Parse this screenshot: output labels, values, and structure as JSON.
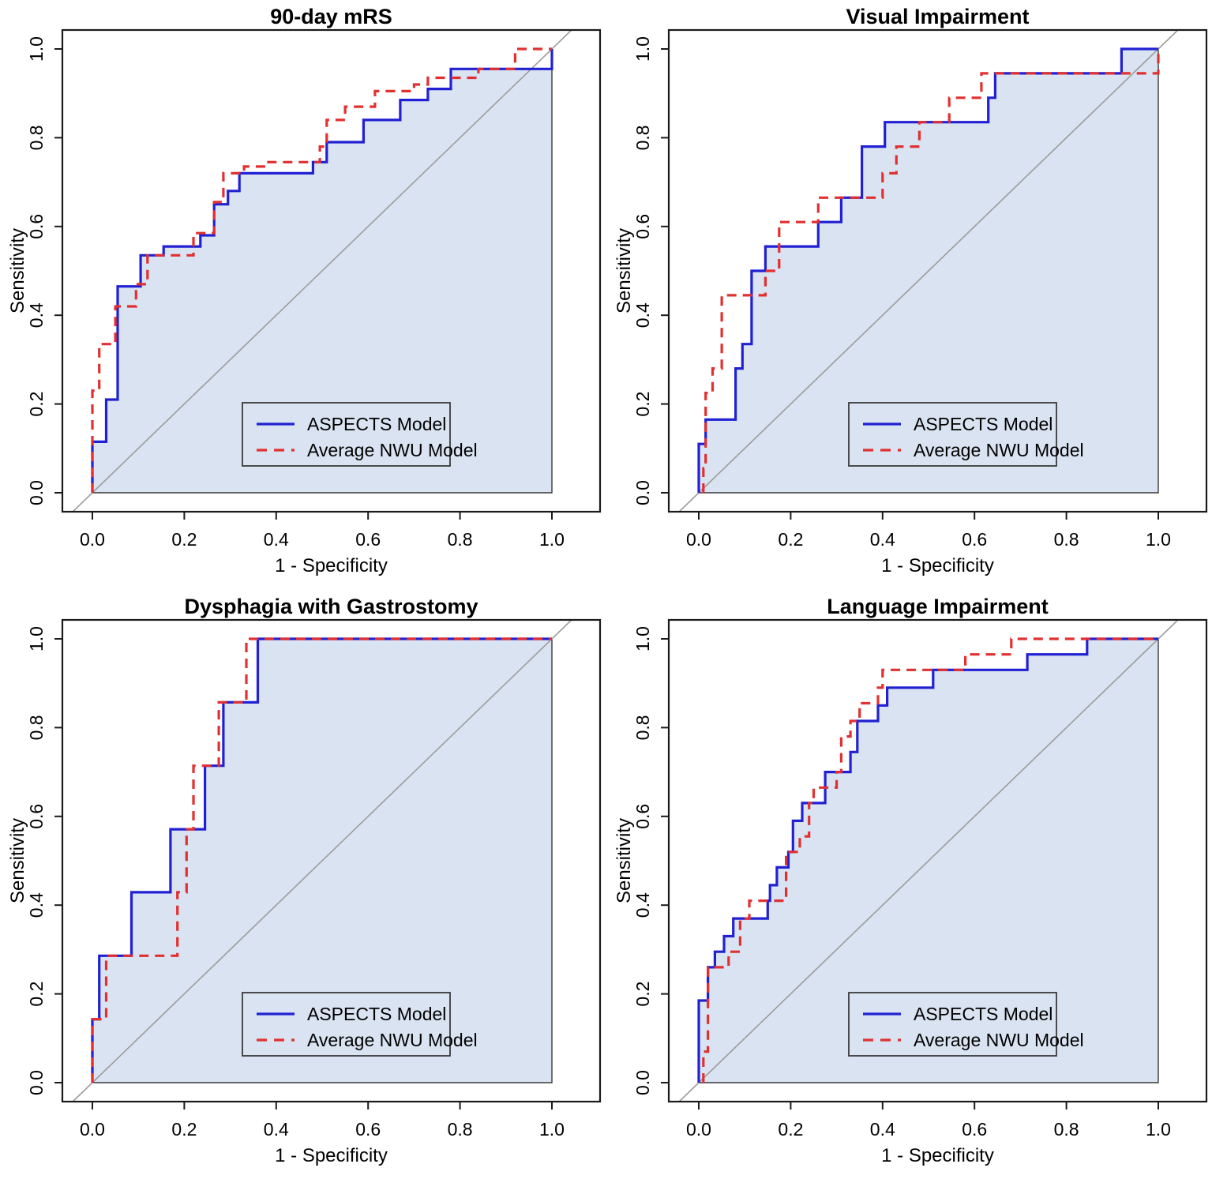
{
  "figure": {
    "type": "roc-curve-grid",
    "layout": {
      "rows": 2,
      "cols": 2
    },
    "colors": {
      "aspects_line": "#2121d3",
      "nwu_line": "#e23030",
      "area_fill": "#d9e3f1",
      "area_border": "#3a3a3a",
      "diagonal": "#9c9c9c",
      "plot_border": "#1a1a1a",
      "text": "#000000",
      "legend_bg": "#d9e3f1",
      "legend_border": "#3a3a3a"
    },
    "legend": {
      "entries": [
        {
          "label": "ASPECTS Model",
          "style": "solid",
          "color": "#2121d3"
        },
        {
          "label": "Average NWU Model",
          "style": "dashed",
          "color": "#e23030"
        }
      ],
      "position": "bottom-right"
    },
    "axis": {
      "xlabel": "1 - Specificity",
      "ylabel": "Sensitivity",
      "xticks": [
        0.0,
        0.2,
        0.4,
        0.6,
        0.8,
        1.0
      ],
      "yticks": [
        0.0,
        0.2,
        0.4,
        0.6,
        0.8,
        1.0
      ]
    }
  },
  "chart_data": [
    {
      "type": "line",
      "subtype": "roc-step",
      "title": "90-day mRS",
      "xlabel": "1 - Specificity",
      "ylabel": "Sensitivity",
      "xlim": [
        0,
        1
      ],
      "ylim": [
        0,
        1
      ],
      "grid": false,
      "diagonal_reference": true,
      "legend_position": "bottom-right",
      "series": [
        {
          "name": "ASPECTS Model",
          "style": "solid",
          "fill_under": true,
          "points": [
            [
              0,
              0
            ],
            [
              0,
              0.115
            ],
            [
              0.03,
              0.115
            ],
            [
              0.03,
              0.21
            ],
            [
              0.055,
              0.21
            ],
            [
              0.055,
              0.465
            ],
            [
              0.105,
              0.465
            ],
            [
              0.105,
              0.535
            ],
            [
              0.155,
              0.535
            ],
            [
              0.155,
              0.555
            ],
            [
              0.235,
              0.555
            ],
            [
              0.235,
              0.58
            ],
            [
              0.265,
              0.58
            ],
            [
              0.265,
              0.65
            ],
            [
              0.295,
              0.65
            ],
            [
              0.295,
              0.68
            ],
            [
              0.32,
              0.68
            ],
            [
              0.32,
              0.72
            ],
            [
              0.48,
              0.72
            ],
            [
              0.48,
              0.745
            ],
            [
              0.51,
              0.745
            ],
            [
              0.51,
              0.79
            ],
            [
              0.59,
              0.79
            ],
            [
              0.59,
              0.84
            ],
            [
              0.67,
              0.84
            ],
            [
              0.67,
              0.885
            ],
            [
              0.73,
              0.885
            ],
            [
              0.73,
              0.91
            ],
            [
              0.78,
              0.91
            ],
            [
              0.78,
              0.955
            ],
            [
              1,
              0.955
            ],
            [
              1,
              1
            ]
          ]
        },
        {
          "name": "Average NWU Model",
          "style": "dashed",
          "fill_under": false,
          "points": [
            [
              0,
              0
            ],
            [
              0,
              0.23
            ],
            [
              0.015,
              0.23
            ],
            [
              0.015,
              0.335
            ],
            [
              0.05,
              0.335
            ],
            [
              0.05,
              0.42
            ],
            [
              0.095,
              0.42
            ],
            [
              0.095,
              0.47
            ],
            [
              0.12,
              0.47
            ],
            [
              0.12,
              0.535
            ],
            [
              0.22,
              0.535
            ],
            [
              0.22,
              0.585
            ],
            [
              0.265,
              0.585
            ],
            [
              0.265,
              0.655
            ],
            [
              0.285,
              0.655
            ],
            [
              0.285,
              0.72
            ],
            [
              0.33,
              0.72
            ],
            [
              0.33,
              0.735
            ],
            [
              0.38,
              0.735
            ],
            [
              0.38,
              0.745
            ],
            [
              0.495,
              0.745
            ],
            [
              0.495,
              0.78
            ],
            [
              0.51,
              0.78
            ],
            [
              0.51,
              0.84
            ],
            [
              0.55,
              0.84
            ],
            [
              0.55,
              0.87
            ],
            [
              0.615,
              0.87
            ],
            [
              0.615,
              0.905
            ],
            [
              0.7,
              0.905
            ],
            [
              0.7,
              0.92
            ],
            [
              0.73,
              0.92
            ],
            [
              0.73,
              0.935
            ],
            [
              0.84,
              0.935
            ],
            [
              0.84,
              0.955
            ],
            [
              0.92,
              0.955
            ],
            [
              0.92,
              1
            ],
            [
              1,
              1
            ]
          ]
        }
      ]
    },
    {
      "type": "line",
      "subtype": "roc-step",
      "title": "Visual Impairment",
      "xlabel": "1 - Specificity",
      "ylabel": "Sensitivity",
      "xlim": [
        0,
        1
      ],
      "ylim": [
        0,
        1
      ],
      "grid": false,
      "diagonal_reference": true,
      "legend_position": "bottom-right",
      "series": [
        {
          "name": "ASPECTS Model",
          "style": "solid",
          "fill_under": true,
          "points": [
            [
              0,
              0
            ],
            [
              0,
              0.11
            ],
            [
              0.015,
              0.11
            ],
            [
              0.015,
              0.165
            ],
            [
              0.08,
              0.165
            ],
            [
              0.08,
              0.28
            ],
            [
              0.095,
              0.28
            ],
            [
              0.095,
              0.335
            ],
            [
              0.115,
              0.335
            ],
            [
              0.115,
              0.5
            ],
            [
              0.145,
              0.5
            ],
            [
              0.145,
              0.555
            ],
            [
              0.26,
              0.555
            ],
            [
              0.26,
              0.61
            ],
            [
              0.31,
              0.61
            ],
            [
              0.31,
              0.665
            ],
            [
              0.355,
              0.665
            ],
            [
              0.355,
              0.78
            ],
            [
              0.405,
              0.78
            ],
            [
              0.405,
              0.835
            ],
            [
              0.63,
              0.835
            ],
            [
              0.63,
              0.89
            ],
            [
              0.645,
              0.89
            ],
            [
              0.645,
              0.945
            ],
            [
              0.92,
              0.945
            ],
            [
              0.92,
              1
            ],
            [
              1,
              1
            ]
          ]
        },
        {
          "name": "Average NWU Model",
          "style": "dashed",
          "fill_under": false,
          "points": [
            [
              0.01,
              0
            ],
            [
              0.01,
              0.055
            ],
            [
              0.015,
              0.055
            ],
            [
              0.015,
              0.225
            ],
            [
              0.03,
              0.225
            ],
            [
              0.03,
              0.28
            ],
            [
              0.05,
              0.28
            ],
            [
              0.05,
              0.445
            ],
            [
              0.145,
              0.445
            ],
            [
              0.145,
              0.5
            ],
            [
              0.175,
              0.5
            ],
            [
              0.175,
              0.61
            ],
            [
              0.26,
              0.61
            ],
            [
              0.26,
              0.665
            ],
            [
              0.4,
              0.665
            ],
            [
              0.4,
              0.72
            ],
            [
              0.43,
              0.72
            ],
            [
              0.43,
              0.78
            ],
            [
              0.48,
              0.78
            ],
            [
              0.48,
              0.835
            ],
            [
              0.545,
              0.835
            ],
            [
              0.545,
              0.89
            ],
            [
              0.615,
              0.89
            ],
            [
              0.615,
              0.945
            ],
            [
              1,
              0.945
            ],
            [
              1,
              1
            ]
          ]
        }
      ]
    },
    {
      "type": "line",
      "subtype": "roc-step",
      "title": "Dysphagia with Gastrostomy",
      "xlabel": "1 - Specificity",
      "ylabel": "Sensitivity",
      "xlim": [
        0,
        1
      ],
      "ylim": [
        0,
        1
      ],
      "grid": false,
      "diagonal_reference": true,
      "legend_position": "bottom-right",
      "series": [
        {
          "name": "ASPECTS Model",
          "style": "solid",
          "fill_under": true,
          "points": [
            [
              0,
              0
            ],
            [
              0,
              0.143
            ],
            [
              0.015,
              0.143
            ],
            [
              0.015,
              0.286
            ],
            [
              0.085,
              0.286
            ],
            [
              0.085,
              0.429
            ],
            [
              0.17,
              0.429
            ],
            [
              0.17,
              0.571
            ],
            [
              0.245,
              0.571
            ],
            [
              0.245,
              0.714
            ],
            [
              0.285,
              0.714
            ],
            [
              0.285,
              0.857
            ],
            [
              0.36,
              0.857
            ],
            [
              0.36,
              1
            ],
            [
              1,
              1
            ]
          ]
        },
        {
          "name": "Average NWU Model",
          "style": "dashed",
          "fill_under": false,
          "points": [
            [
              0,
              0
            ],
            [
              0,
              0.143
            ],
            [
              0.03,
              0.143
            ],
            [
              0.03,
              0.286
            ],
            [
              0.185,
              0.286
            ],
            [
              0.185,
              0.429
            ],
            [
              0.205,
              0.429
            ],
            [
              0.205,
              0.571
            ],
            [
              0.22,
              0.571
            ],
            [
              0.22,
              0.714
            ],
            [
              0.275,
              0.714
            ],
            [
              0.275,
              0.857
            ],
            [
              0.335,
              0.857
            ],
            [
              0.335,
              1
            ],
            [
              1,
              1
            ]
          ]
        }
      ]
    },
    {
      "type": "line",
      "subtype": "roc-step",
      "title": "Language Impairment",
      "xlabel": "1 - Specificity",
      "ylabel": "Sensitivity",
      "xlim": [
        0,
        1
      ],
      "ylim": [
        0,
        1
      ],
      "grid": false,
      "diagonal_reference": true,
      "legend_position": "bottom-right",
      "series": [
        {
          "name": "ASPECTS Model",
          "style": "solid",
          "fill_under": true,
          "points": [
            [
              0,
              0
            ],
            [
              0,
              0.185
            ],
            [
              0.02,
              0.185
            ],
            [
              0.02,
              0.26
            ],
            [
              0.035,
              0.26
            ],
            [
              0.035,
              0.295
            ],
            [
              0.055,
              0.295
            ],
            [
              0.055,
              0.33
            ],
            [
              0.075,
              0.33
            ],
            [
              0.075,
              0.37
            ],
            [
              0.15,
              0.37
            ],
            [
              0.15,
              0.41
            ],
            [
              0.155,
              0.41
            ],
            [
              0.155,
              0.445
            ],
            [
              0.17,
              0.445
            ],
            [
              0.17,
              0.485
            ],
            [
              0.195,
              0.485
            ],
            [
              0.195,
              0.52
            ],
            [
              0.205,
              0.52
            ],
            [
              0.205,
              0.59
            ],
            [
              0.225,
              0.59
            ],
            [
              0.225,
              0.63
            ],
            [
              0.275,
              0.63
            ],
            [
              0.275,
              0.7
            ],
            [
              0.33,
              0.7
            ],
            [
              0.33,
              0.745
            ],
            [
              0.345,
              0.745
            ],
            [
              0.345,
              0.815
            ],
            [
              0.39,
              0.815
            ],
            [
              0.39,
              0.85
            ],
            [
              0.41,
              0.85
            ],
            [
              0.41,
              0.89
            ],
            [
              0.51,
              0.89
            ],
            [
              0.51,
              0.93
            ],
            [
              0.715,
              0.93
            ],
            [
              0.715,
              0.965
            ],
            [
              0.845,
              0.965
            ],
            [
              0.845,
              1
            ],
            [
              1,
              1
            ]
          ]
        },
        {
          "name": "Average NWU Model",
          "style": "dashed",
          "fill_under": false,
          "points": [
            [
              0.01,
              0
            ],
            [
              0.01,
              0.07
            ],
            [
              0.02,
              0.07
            ],
            [
              0.02,
              0.26
            ],
            [
              0.065,
              0.26
            ],
            [
              0.065,
              0.295
            ],
            [
              0.09,
              0.295
            ],
            [
              0.09,
              0.37
            ],
            [
              0.11,
              0.37
            ],
            [
              0.11,
              0.41
            ],
            [
              0.19,
              0.41
            ],
            [
              0.19,
              0.52
            ],
            [
              0.22,
              0.52
            ],
            [
              0.22,
              0.555
            ],
            [
              0.24,
              0.555
            ],
            [
              0.24,
              0.63
            ],
            [
              0.25,
              0.63
            ],
            [
              0.25,
              0.665
            ],
            [
              0.3,
              0.665
            ],
            [
              0.3,
              0.7
            ],
            [
              0.31,
              0.7
            ],
            [
              0.31,
              0.78
            ],
            [
              0.33,
              0.78
            ],
            [
              0.33,
              0.815
            ],
            [
              0.35,
              0.815
            ],
            [
              0.35,
              0.855
            ],
            [
              0.39,
              0.855
            ],
            [
              0.39,
              0.89
            ],
            [
              0.4,
              0.89
            ],
            [
              0.4,
              0.93
            ],
            [
              0.58,
              0.93
            ],
            [
              0.58,
              0.965
            ],
            [
              0.68,
              0.965
            ],
            [
              0.68,
              1
            ],
            [
              1,
              1
            ]
          ]
        }
      ]
    }
  ]
}
